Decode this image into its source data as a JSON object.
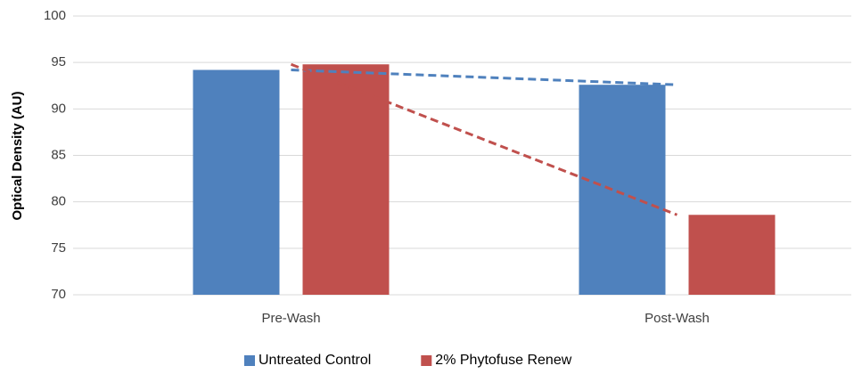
{
  "chart_data": {
    "type": "bar",
    "ylabel": "Optical Density (AU)",
    "categories": [
      "Pre-Wash",
      "Post-Wash"
    ],
    "series": [
      {
        "name": "Untreated Control",
        "color": "#4f81bd",
        "values": [
          94.2,
          92.6
        ]
      },
      {
        "name": "2% Phytofuse Renew",
        "color": "#c0504d",
        "values": [
          94.8,
          78.6
        ]
      }
    ],
    "ylim": [
      70,
      100
    ],
    "yticks": [
      70,
      75,
      80,
      85,
      90,
      95,
      100
    ],
    "grid": true,
    "trendline": true,
    "legend": "bottom"
  }
}
